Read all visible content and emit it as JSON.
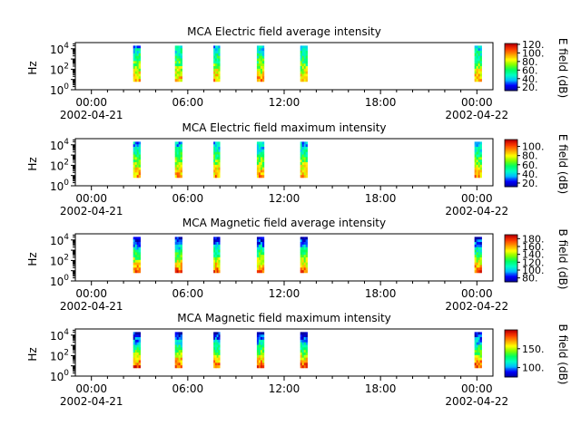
{
  "x_tick_labels": [
    "00:00",
    "06:00",
    "12:00",
    "18:00",
    "00:00"
  ],
  "x_tick_hours": [
    0,
    6,
    12,
    18,
    24
  ],
  "date_labels": [
    {
      "text": "2002-04-21",
      "hour": 0
    },
    {
      "text": "2002-04-22",
      "hour": 24
    }
  ],
  "y_tick_labels": [
    {
      "base": "10",
      "exp": "0",
      "decade": 0
    },
    {
      "base": "10",
      "exp": "2",
      "decade": 2
    },
    {
      "base": "10",
      "exp": "4",
      "decade": 4
    }
  ],
  "chart_data": [
    {
      "type": "heatmap",
      "title": "MCA  Electric field average intensity",
      "ylabel": "Hz",
      "colorbar_label": "E field (dB)",
      "x_range_hours": [
        -1,
        25
      ],
      "y_range_log10": [
        0,
        4.6
      ],
      "y_scale": "log",
      "colorbar_range": [
        12,
        122
      ],
      "colorbar_ticks": [
        20,
        40,
        60,
        80,
        100,
        120
      ],
      "colorbar_tick_labels": [
        "20.",
        "40.",
        "60.",
        "80.",
        "100.",
        "120."
      ],
      "segments_hours": [
        [
          2.6,
          3.05
        ],
        [
          5.2,
          5.65
        ],
        [
          7.6,
          8.0
        ],
        [
          10.3,
          10.75
        ],
        [
          13.0,
          13.45
        ],
        [
          23.85,
          24.3
        ]
      ],
      "intensity_low_freq": 95,
      "intensity_high_freq": 40
    },
    {
      "type": "heatmap",
      "title": "MCA  Electric field maximum intensity",
      "ylabel": "Hz",
      "colorbar_label": "E field (dB)",
      "x_range_hours": [
        -1,
        25
      ],
      "y_range_log10": [
        0,
        4.6
      ],
      "y_scale": "log",
      "colorbar_range": [
        12,
        115
      ],
      "colorbar_ticks": [
        20,
        40,
        60,
        80,
        100
      ],
      "colorbar_tick_labels": [
        "20.",
        "40.",
        "60.",
        "80.",
        "100."
      ],
      "segments_hours": [
        [
          2.6,
          3.05
        ],
        [
          5.2,
          5.65
        ],
        [
          7.6,
          8.0
        ],
        [
          10.3,
          10.75
        ],
        [
          13.0,
          13.45
        ],
        [
          23.85,
          24.3
        ]
      ],
      "intensity_low_freq": 92,
      "intensity_high_freq": 35
    },
    {
      "type": "heatmap",
      "title": "MCA  Magnetic field average intensity",
      "ylabel": "Hz",
      "colorbar_label": "B field (dB)",
      "x_range_hours": [
        -1,
        25
      ],
      "y_range_log10": [
        0,
        4.6
      ],
      "y_scale": "log",
      "colorbar_range": [
        70,
        190
      ],
      "colorbar_ticks": [
        80,
        100,
        120,
        140,
        160,
        180
      ],
      "colorbar_tick_labels": [
        "80.",
        "100.",
        "120.",
        "140.",
        "160.",
        "180."
      ],
      "segments_hours": [
        [
          2.6,
          3.05
        ],
        [
          5.2,
          5.65
        ],
        [
          7.6,
          8.0
        ],
        [
          10.3,
          10.75
        ],
        [
          13.0,
          13.45
        ],
        [
          23.85,
          24.3
        ]
      ],
      "intensity_low_freq": 175,
      "intensity_high_freq": 75
    },
    {
      "type": "heatmap",
      "title": "MCA  Magnetic field maximum intensity",
      "ylabel": "Hz",
      "colorbar_label": "B field (dB)",
      "x_range_hours": [
        -1,
        25
      ],
      "y_range_log10": [
        0,
        4.6
      ],
      "y_scale": "log",
      "colorbar_range": [
        75,
        200
      ],
      "colorbar_ticks": [
        100,
        150
      ],
      "colorbar_tick_labels": [
        "100.",
        "150."
      ],
      "segments_hours": [
        [
          2.6,
          3.05
        ],
        [
          5.2,
          5.65
        ],
        [
          7.6,
          8.0
        ],
        [
          10.3,
          10.75
        ],
        [
          13.0,
          13.45
        ],
        [
          23.85,
          24.3
        ]
      ],
      "intensity_low_freq": 185,
      "intensity_high_freq": 80
    }
  ],
  "colormap": [
    "#0000a0",
    "#0000ff",
    "#00c0ff",
    "#00ffc0",
    "#00ff60",
    "#80ff00",
    "#ffff00",
    "#ffa000",
    "#ff4000",
    "#c00000"
  ]
}
